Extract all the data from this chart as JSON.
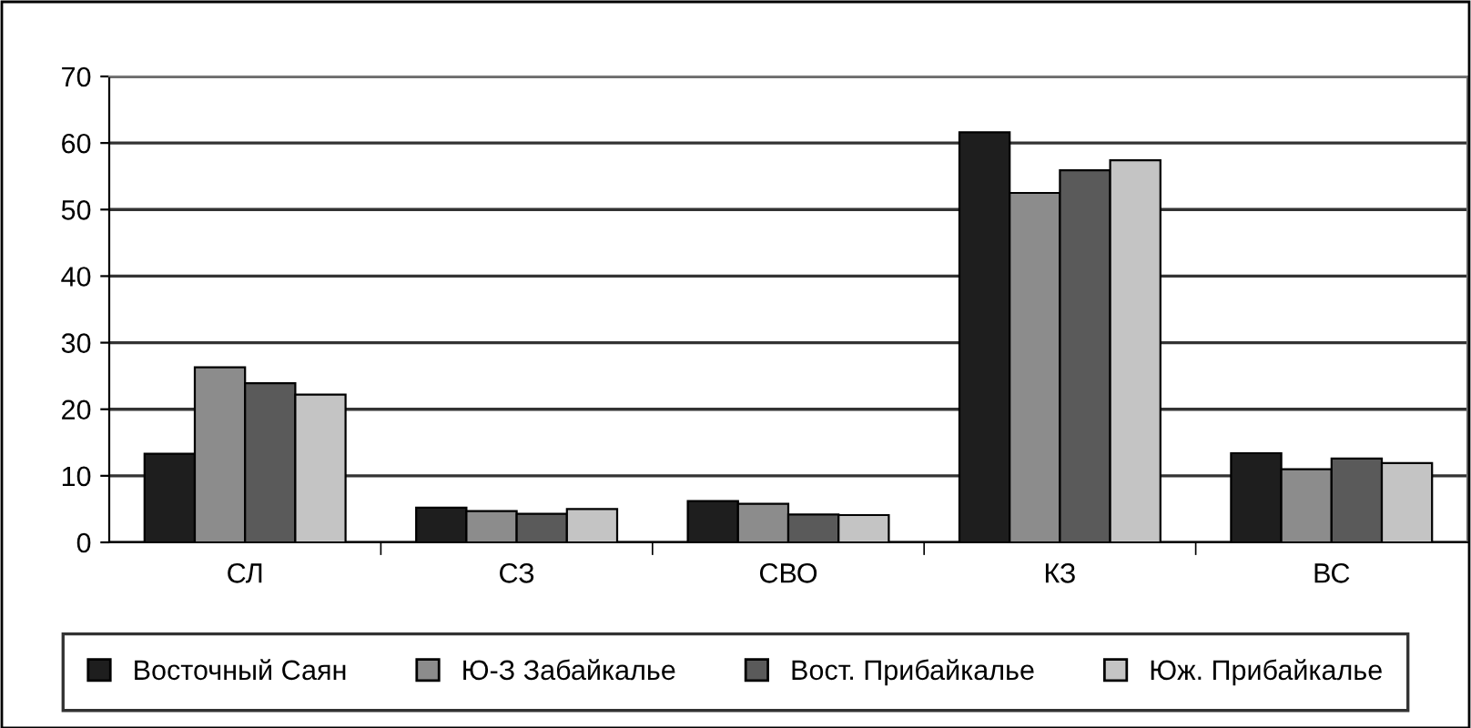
{
  "chart_data": {
    "type": "bar",
    "categories": [
      "СЛ",
      "СЗ",
      "СВО",
      "КЗ",
      "ВС"
    ],
    "series": [
      {
        "name": "Восточный Саян",
        "color": "#1e1e1e",
        "values": [
          13.3,
          5.2,
          6.2,
          61.6,
          13.4
        ]
      },
      {
        "name": "Ю-З Забайкалье",
        "color": "#8c8c8c",
        "values": [
          26.3,
          4.7,
          5.8,
          52.5,
          11.0
        ]
      },
      {
        "name": "Вост. Прибайкалье",
        "color": "#5a5a5a",
        "values": [
          23.9,
          4.3,
          4.2,
          55.9,
          12.6
        ]
      },
      {
        "name": "Юж. Прибайкалье",
        "color": "#c4c4c4",
        "values": [
          22.2,
          5.0,
          4.1,
          57.4,
          11.9
        ]
      }
    ],
    "ylim": [
      0,
      70
    ],
    "yticks": [
      0,
      10,
      20,
      30,
      40,
      50,
      60,
      70
    ],
    "grid": "y",
    "legend": "bottom"
  }
}
